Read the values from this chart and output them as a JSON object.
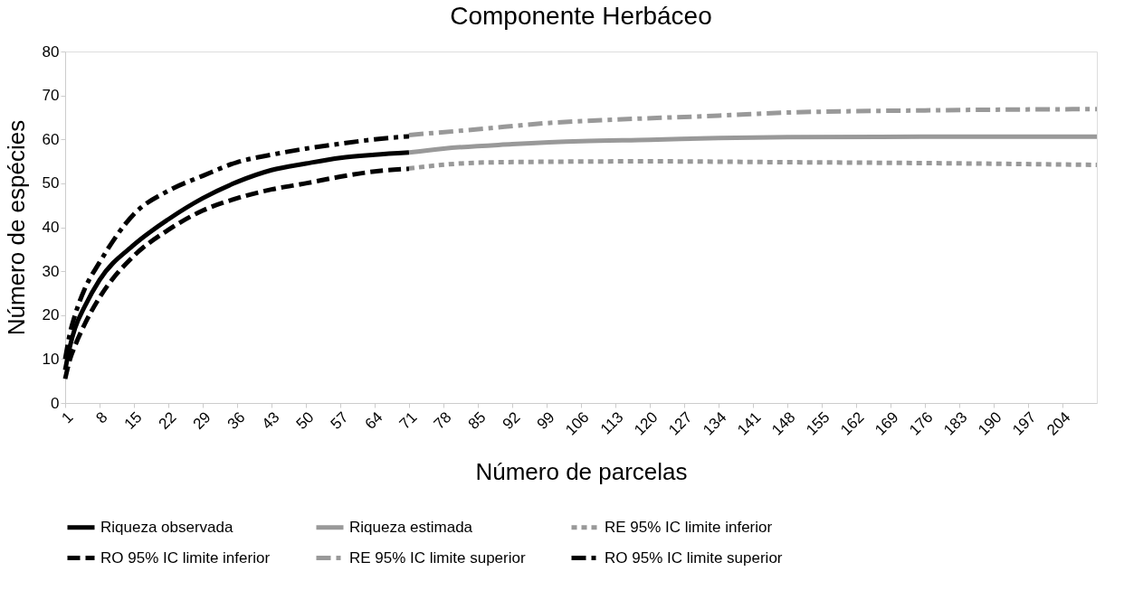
{
  "chart_data": {
    "type": "line",
    "title": "Componente Herbáceo",
    "xlabel": "Número de parcelas",
    "ylabel": "Número de espécies",
    "xlim": [
      1,
      211
    ],
    "xticks": [
      1,
      8,
      15,
      22,
      29,
      36,
      43,
      50,
      57,
      64,
      71,
      78,
      85,
      92,
      99,
      106,
      113,
      120,
      127,
      134,
      141,
      148,
      155,
      162,
      169,
      176,
      183,
      190,
      197,
      204
    ],
    "ylim": [
      0,
      80
    ],
    "yticks": [
      0,
      10,
      20,
      30,
      40,
      50,
      60,
      70,
      80
    ],
    "grid": false,
    "legend": "bottom",
    "marker": "none",
    "series": [
      {
        "name": "Riqueza observada",
        "color": "#000000",
        "line_style": "solid",
        "x": [
          1,
          2,
          3,
          5,
          8,
          15,
          22,
          29,
          36,
          43,
          50,
          57,
          64,
          71
        ],
        "values": [
          7.5,
          13,
          17,
          22,
          28,
          36,
          41.8,
          46.6,
          50.3,
          53,
          54.5,
          55.8,
          56.5,
          57
        ]
      },
      {
        "name": "Riqueza estimada",
        "color": "#999999",
        "line_style": "solid",
        "x": [
          71,
          78,
          92,
          106,
          120,
          134,
          148,
          176,
          211
        ],
        "values": [
          57,
          57.9,
          58.9,
          59.6,
          59.9,
          60.3,
          60.5,
          60.6,
          60.6
        ]
      },
      {
        "name": "RE 95% IC limite inferior",
        "color": "#999999",
        "line_style": "dotted",
        "x": [
          71,
          85,
          99,
          120,
          148,
          176,
          211
        ],
        "values": [
          53.4,
          54.7,
          54.9,
          55,
          54.8,
          54.6,
          54.2
        ]
      },
      {
        "name": "RO 95% IC limite inferior",
        "color": "#000000",
        "line_style": "dashed",
        "x": [
          1,
          2,
          3,
          5,
          8,
          15,
          22,
          29,
          36,
          43,
          50,
          57,
          64,
          71
        ],
        "values": [
          5.5,
          10,
          13,
          18,
          24,
          33.5,
          39.4,
          43.8,
          46.6,
          48.6,
          50,
          51.5,
          52.7,
          53.3
        ]
      },
      {
        "name": "RE 95% IC limite superior",
        "color": "#999999",
        "line_style": "dashdot",
        "x": [
          71,
          85,
          99,
          113,
          134,
          148,
          176,
          211
        ],
        "values": [
          61,
          62.3,
          63.7,
          64.5,
          65.4,
          66.1,
          66.6,
          66.9
        ]
      },
      {
        "name": "RO 95% IC limite superior",
        "color": "#000000",
        "line_style": "dashdot",
        "x": [
          1,
          2,
          3,
          5,
          8,
          15,
          22,
          29,
          36,
          43,
          50,
          57,
          64,
          71
        ],
        "values": [
          10,
          16,
          20,
          26,
          32,
          43,
          48.3,
          51.7,
          54.8,
          56.5,
          57.9,
          59,
          60,
          60.7
        ]
      }
    ]
  }
}
